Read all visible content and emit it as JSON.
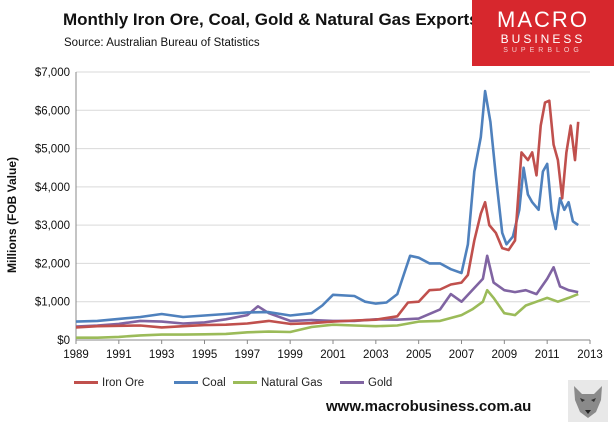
{
  "header": {
    "title": "Monthly Iron Ore, Coal, Gold & Natural Gas Exports",
    "source": "Source:  Australian Bureau of Statistics"
  },
  "logo": {
    "line1": "MACRO",
    "line2": "BUSINESS",
    "line3": "SUPERBLOG"
  },
  "footer": {
    "url": "www.macrobusiness.com.au"
  },
  "colors": {
    "iron_ore": "#c0504d",
    "coal": "#4f81bd",
    "natural_gas": "#9bbb59",
    "gold": "#8064a2",
    "grid": "#d9d9d9"
  },
  "chart_data": {
    "type": "line",
    "title": "Monthly Iron Ore, Coal, Gold & Natural Gas Exports",
    "xlabel": "",
    "ylabel": "Millions (FOB Value)",
    "xlim": [
      1989,
      2013
    ],
    "ylim": [
      0,
      7000
    ],
    "x_ticks": [
      "1989",
      "1991",
      "1993",
      "1995",
      "1997",
      "1999",
      "2001",
      "2003",
      "2005",
      "2007",
      "2009",
      "2011",
      "2013"
    ],
    "y_ticks": [
      "$0",
      "$1,000",
      "$2,000",
      "$3,000",
      "$4,000",
      "$5,000",
      "$6,000",
      "$7,000"
    ],
    "grid": true,
    "legend_position": "bottom",
    "series": [
      {
        "name": "Iron Ore",
        "color": "#c0504d",
        "points": [
          [
            1989,
            330
          ],
          [
            1990,
            360
          ],
          [
            1991,
            370
          ],
          [
            1992,
            380
          ],
          [
            1993,
            330
          ],
          [
            1994,
            360
          ],
          [
            1995,
            390
          ],
          [
            1996,
            400
          ],
          [
            1997,
            430
          ],
          [
            1998,
            500
          ],
          [
            1999,
            420
          ],
          [
            2000,
            440
          ],
          [
            2001,
            480
          ],
          [
            2002,
            510
          ],
          [
            2003,
            530
          ],
          [
            2004,
            620
          ],
          [
            2004.5,
            980
          ],
          [
            2005,
            1000
          ],
          [
            2005.5,
            1300
          ],
          [
            2006,
            1320
          ],
          [
            2006.5,
            1450
          ],
          [
            2007,
            1500
          ],
          [
            2007.3,
            1700
          ],
          [
            2007.6,
            2600
          ],
          [
            2007.9,
            3300
          ],
          [
            2008.1,
            3600
          ],
          [
            2008.3,
            3000
          ],
          [
            2008.6,
            2800
          ],
          [
            2008.9,
            2400
          ],
          [
            2009.2,
            2350
          ],
          [
            2009.5,
            2600
          ],
          [
            2009.8,
            4900
          ],
          [
            2010.1,
            4700
          ],
          [
            2010.3,
            4900
          ],
          [
            2010.5,
            4300
          ],
          [
            2010.7,
            5600
          ],
          [
            2010.9,
            6200
          ],
          [
            2011.1,
            6250
          ],
          [
            2011.3,
            5100
          ],
          [
            2011.5,
            4700
          ],
          [
            2011.7,
            3700
          ],
          [
            2011.9,
            4900
          ],
          [
            2012.1,
            5600
          ],
          [
            2012.3,
            4700
          ],
          [
            2012.45,
            5700
          ]
        ]
      },
      {
        "name": "Coal",
        "color": "#4f81bd",
        "points": [
          [
            1989,
            480
          ],
          [
            1990,
            500
          ],
          [
            1991,
            550
          ],
          [
            1992,
            600
          ],
          [
            1993,
            680
          ],
          [
            1994,
            600
          ],
          [
            1995,
            640
          ],
          [
            1996,
            680
          ],
          [
            1997,
            720
          ],
          [
            1998,
            730
          ],
          [
            1999,
            640
          ],
          [
            2000,
            700
          ],
          [
            2000.5,
            900
          ],
          [
            2001,
            1180
          ],
          [
            2002,
            1150
          ],
          [
            2002.5,
            1000
          ],
          [
            2003,
            950
          ],
          [
            2003.5,
            980
          ],
          [
            2004,
            1200
          ],
          [
            2004.3,
            1700
          ],
          [
            2004.6,
            2200
          ],
          [
            2005,
            2150
          ],
          [
            2005.5,
            2000
          ],
          [
            2006,
            2000
          ],
          [
            2006.5,
            1850
          ],
          [
            2007,
            1750
          ],
          [
            2007.3,
            2500
          ],
          [
            2007.6,
            4400
          ],
          [
            2007.9,
            5300
          ],
          [
            2008.1,
            6500
          ],
          [
            2008.35,
            5700
          ],
          [
            2008.6,
            4300
          ],
          [
            2008.9,
            2800
          ],
          [
            2009.1,
            2500
          ],
          [
            2009.4,
            2700
          ],
          [
            2009.7,
            3400
          ],
          [
            2009.9,
            4500
          ],
          [
            2010.1,
            3800
          ],
          [
            2010.3,
            3600
          ],
          [
            2010.6,
            3400
          ],
          [
            2010.8,
            4400
          ],
          [
            2011.0,
            4600
          ],
          [
            2011.2,
            3400
          ],
          [
            2011.4,
            2900
          ],
          [
            2011.6,
            3700
          ],
          [
            2011.8,
            3400
          ],
          [
            2012.0,
            3600
          ],
          [
            2012.2,
            3100
          ],
          [
            2012.45,
            3000
          ]
        ]
      },
      {
        "name": "Natural Gas",
        "color": "#9bbb59",
        "points": [
          [
            1989,
            60
          ],
          [
            1990,
            60
          ],
          [
            1991,
            80
          ],
          [
            1992,
            120
          ],
          [
            1993,
            140
          ],
          [
            1994,
            140
          ],
          [
            1995,
            150
          ],
          [
            1996,
            160
          ],
          [
            1997,
            200
          ],
          [
            1998,
            220
          ],
          [
            1999,
            210
          ],
          [
            2000,
            340
          ],
          [
            2001,
            400
          ],
          [
            2002,
            380
          ],
          [
            2003,
            360
          ],
          [
            2004,
            380
          ],
          [
            2005,
            480
          ],
          [
            2006,
            500
          ],
          [
            2007,
            650
          ],
          [
            2007.5,
            800
          ],
          [
            2008,
            1000
          ],
          [
            2008.2,
            1300
          ],
          [
            2008.5,
            1100
          ],
          [
            2009,
            700
          ],
          [
            2009.5,
            650
          ],
          [
            2010,
            900
          ],
          [
            2010.5,
            1000
          ],
          [
            2011,
            1100
          ],
          [
            2011.5,
            1000
          ],
          [
            2012,
            1100
          ],
          [
            2012.45,
            1200
          ]
        ]
      },
      {
        "name": "Gold",
        "color": "#8064a2",
        "points": [
          [
            1989,
            350
          ],
          [
            1990,
            380
          ],
          [
            1991,
            420
          ],
          [
            1992,
            500
          ],
          [
            1993,
            480
          ],
          [
            1994,
            430
          ],
          [
            1995,
            460
          ],
          [
            1996,
            540
          ],
          [
            1997,
            650
          ],
          [
            1997.5,
            880
          ],
          [
            1998,
            700
          ],
          [
            1999,
            500
          ],
          [
            2000,
            520
          ],
          [
            2001,
            500
          ],
          [
            2002,
            500
          ],
          [
            2003,
            540
          ],
          [
            2004,
            530
          ],
          [
            2005,
            560
          ],
          [
            2006,
            800
          ],
          [
            2006.5,
            1200
          ],
          [
            2007,
            1000
          ],
          [
            2007.5,
            1300
          ],
          [
            2008,
            1600
          ],
          [
            2008.2,
            2200
          ],
          [
            2008.5,
            1500
          ],
          [
            2009,
            1300
          ],
          [
            2009.5,
            1250
          ],
          [
            2010,
            1300
          ],
          [
            2010.5,
            1200
          ],
          [
            2011,
            1600
          ],
          [
            2011.3,
            1900
          ],
          [
            2011.6,
            1400
          ],
          [
            2012,
            1300
          ],
          [
            2012.45,
            1250
          ]
        ]
      }
    ]
  }
}
